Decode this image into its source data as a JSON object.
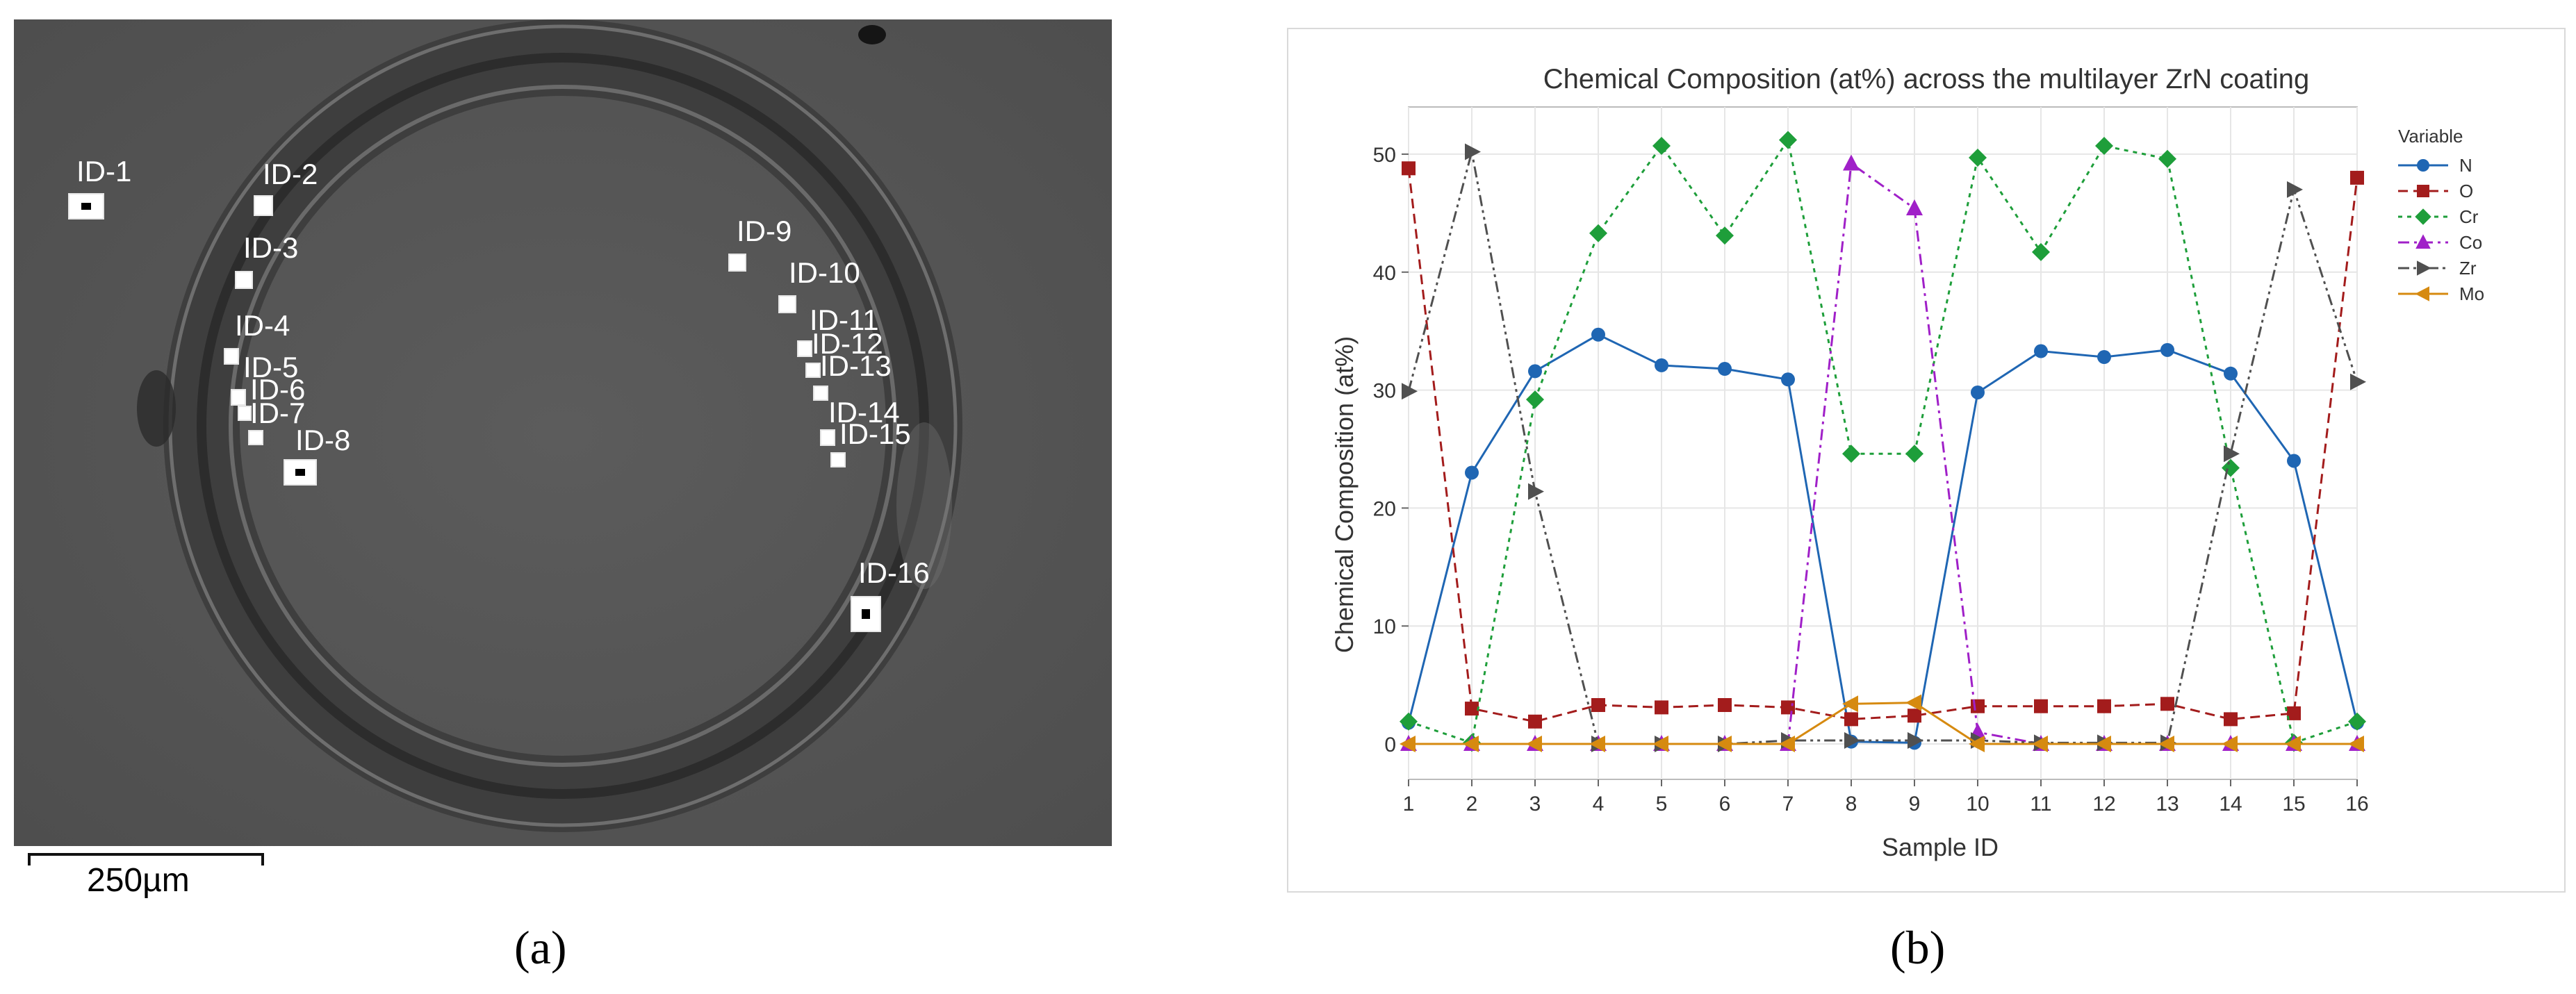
{
  "panel_a": {
    "scale_label": "250µm",
    "caption": "(a)",
    "sample_labels": [
      "ID-1",
      "ID-2",
      "ID-3",
      "ID-4",
      "ID-5",
      "ID-6",
      "ID-7",
      "ID-8",
      "ID-9",
      "ID-10",
      "ID-11",
      "ID-12",
      "ID-13",
      "ID-14",
      "ID-15",
      "ID-16"
    ]
  },
  "panel_b": {
    "caption": "(b)"
  },
  "chart_data": {
    "type": "line",
    "title": "Chemical Composition (at%) across the multilayer ZrN coating",
    "xlabel": "Sample ID",
    "ylabel": "Chemical Composition (at%)",
    "x": [
      1,
      2,
      3,
      4,
      5,
      6,
      7,
      8,
      9,
      10,
      11,
      12,
      13,
      14,
      15,
      16
    ],
    "xlim": [
      1,
      16
    ],
    "ylim": [
      -3,
      54
    ],
    "yticks": [
      0,
      10,
      20,
      30,
      40,
      50
    ],
    "grid": true,
    "legend_title": "Variable",
    "legend_position": "right",
    "series": [
      {
        "name": "N",
        "color": "#1f66b3",
        "dash": "solid",
        "marker": "circle",
        "values": [
          1.8,
          23.0,
          31.6,
          34.7,
          32.1,
          31.8,
          30.9,
          0.2,
          0.1,
          29.8,
          33.3,
          32.8,
          33.4,
          31.4,
          24.0,
          1.8
        ]
      },
      {
        "name": "O",
        "color": "#a31c1c",
        "dash": "dashed",
        "marker": "square",
        "values": [
          48.8,
          3.0,
          1.9,
          3.3,
          3.1,
          3.3,
          3.1,
          2.1,
          2.4,
          3.2,
          3.2,
          3.2,
          3.4,
          2.1,
          2.6,
          48.0
        ]
      },
      {
        "name": "Cr",
        "color": "#1e9e3a",
        "dash": "dotted",
        "marker": "diamond",
        "values": [
          1.9,
          0.1,
          29.2,
          43.3,
          50.7,
          43.1,
          51.2,
          24.6,
          24.6,
          49.7,
          41.7,
          50.7,
          49.6,
          23.4,
          0.1,
          1.9
        ]
      },
      {
        "name": "Co",
        "color": "#a020c8",
        "dash": "dashdot",
        "marker": "triangle-up",
        "values": [
          0.0,
          0.0,
          0.0,
          0.0,
          0.0,
          0.0,
          0.0,
          49.2,
          45.4,
          1.0,
          0.0,
          0.0,
          0.0,
          0.0,
          0.0,
          0.0
        ]
      },
      {
        "name": "Zr",
        "color": "#505050",
        "dash": "dashdotdot",
        "marker": "triangle-right",
        "values": [
          29.9,
          50.2,
          21.4,
          0.0,
          0.0,
          0.0,
          0.3,
          0.3,
          0.3,
          0.3,
          0.1,
          0.1,
          0.1,
          24.6,
          47.0,
          30.7
        ]
      },
      {
        "name": "Mo",
        "color": "#d68a10",
        "dash": "solid",
        "marker": "triangle-left",
        "values": [
          0.0,
          0.0,
          0.0,
          0.0,
          0.0,
          0.0,
          0.0,
          3.4,
          3.5,
          0.0,
          0.0,
          0.0,
          0.0,
          0.0,
          0.0,
          0.0
        ]
      }
    ]
  }
}
